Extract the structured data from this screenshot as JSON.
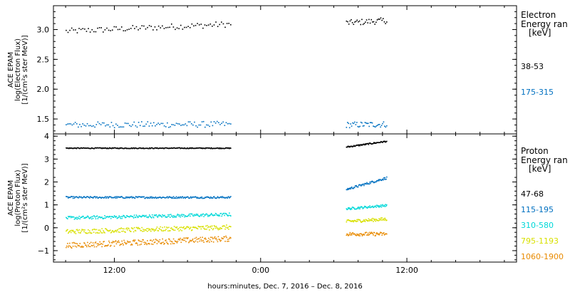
{
  "chart_data": [
    {
      "type": "scatter",
      "ylabel_lines": [
        "ACE EPAM",
        "log(Electron Flux)",
        "[1/(cm²s ster MeV)]"
      ],
      "legend_title_lines": [
        "Electron",
        "Energy ran"
      ],
      "legend_unit": "[keV]",
      "ylim": [
        1.25,
        3.4
      ],
      "y_ticks": [
        1.5,
        2.0,
        2.5,
        3.0
      ],
      "y_tick_labels": [
        "1.5",
        "2.0",
        "2.5",
        "3.0"
      ],
      "series": [
        {
          "name": "38-53",
          "color": "#000000",
          "segments": [
            {
              "x_start": 8.0,
              "x_end": 21.5,
              "y_start": 2.98,
              "y_end": 3.1,
              "noise": 0.05,
              "n": 90
            },
            {
              "x_start": 31.0,
              "x_end": 34.3,
              "y_start": 3.12,
              "y_end": 3.16,
              "noise": 0.05,
              "n": 35
            }
          ]
        },
        {
          "name": "175-315",
          "color": "#0070c0",
          "segments": [
            {
              "x_start": 8.0,
              "x_end": 21.5,
              "y_start": 1.41,
              "y_end": 1.42,
              "noise": 0.05,
              "n": 110
            },
            {
              "x_start": 31.0,
              "x_end": 34.3,
              "y_start": 1.41,
              "y_end": 1.42,
              "noise": 0.05,
              "n": 40
            }
          ]
        }
      ]
    },
    {
      "type": "scatter",
      "ylabel_lines": [
        "ACE EPAM",
        "log(Proton Flux)",
        "[1/(cm²s ster MeV)]"
      ],
      "legend_title_lines": [
        "Proton",
        "Energy ran"
      ],
      "legend_unit": "[keV]",
      "ylim": [
        -1.5,
        4.1
      ],
      "y_ticks": [
        -1,
        0,
        1,
        2,
        3,
        4
      ],
      "y_tick_labels": [
        "−1",
        "0",
        "1",
        "2",
        "3",
        "4"
      ],
      "series": [
        {
          "name": "47-68",
          "color": "#000000",
          "segments": [
            {
              "x_start": 8.0,
              "x_end": 21.5,
              "y_start": 3.5,
              "y_end": 3.5,
              "noise": 0.02,
              "n": 240
            },
            {
              "x_start": 31.0,
              "x_end": 34.3,
              "y_start": 3.55,
              "y_end": 3.8,
              "noise": 0.03,
              "n": 70
            }
          ]
        },
        {
          "name": "115-195",
          "color": "#0070c0",
          "segments": [
            {
              "x_start": 8.0,
              "x_end": 21.5,
              "y_start": 1.35,
              "y_end": 1.35,
              "noise": 0.04,
              "n": 240
            },
            {
              "x_start": 31.0,
              "x_end": 34.3,
              "y_start": 1.7,
              "y_end": 2.2,
              "noise": 0.05,
              "n": 70
            }
          ]
        },
        {
          "name": "310-580",
          "color": "#00d8d8",
          "segments": [
            {
              "x_start": 8.0,
              "x_end": 21.5,
              "y_start": 0.45,
              "y_end": 0.6,
              "noise": 0.07,
              "n": 240
            },
            {
              "x_start": 31.0,
              "x_end": 34.3,
              "y_start": 0.85,
              "y_end": 1.0,
              "noise": 0.05,
              "n": 70
            }
          ]
        },
        {
          "name": "795-1193",
          "color": "#d8e000",
          "segments": [
            {
              "x_start": 8.0,
              "x_end": 21.5,
              "y_start": -0.15,
              "y_end": 0.05,
              "noise": 0.1,
              "n": 240
            },
            {
              "x_start": 31.0,
              "x_end": 34.3,
              "y_start": 0.3,
              "y_end": 0.4,
              "noise": 0.07,
              "n": 70
            }
          ]
        },
        {
          "name": "1060-1900",
          "color": "#e88a00",
          "segments": [
            {
              "x_start": 8.0,
              "x_end": 21.5,
              "y_start": -0.75,
              "y_end": -0.45,
              "noise": 0.12,
              "n": 240
            },
            {
              "x_start": 31.0,
              "x_end": 34.3,
              "y_start": -0.25,
              "y_end": -0.25,
              "noise": 0.08,
              "n": 70
            }
          ]
        }
      ]
    }
  ],
  "x_axis": {
    "xlim": [
      7.0,
      45.0
    ],
    "ticks": [
      12,
      24,
      36
    ],
    "tick_labels": [
      "12:00",
      "0:00",
      "12:00"
    ],
    "xlabel": "hours:minutes, Dec.  7, 2016 – Dec.  8, 2016"
  }
}
